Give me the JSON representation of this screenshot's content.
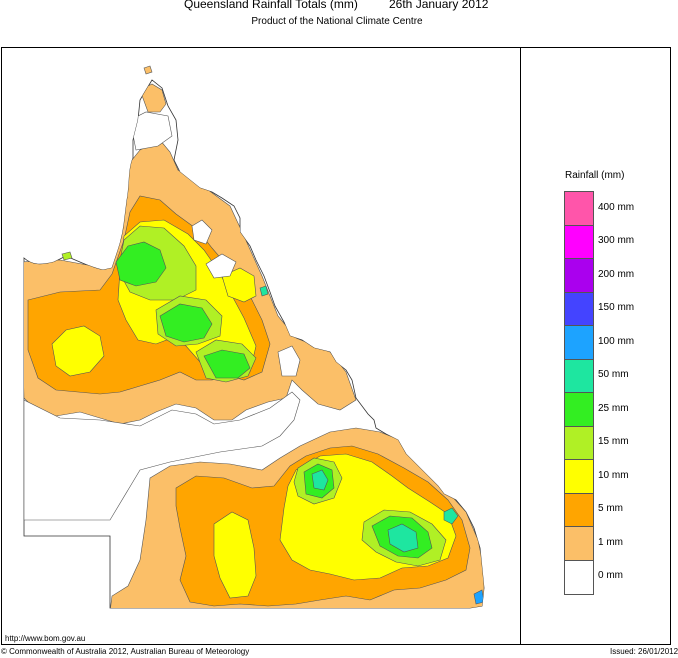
{
  "header": {
    "title": "Queensland Rainfall Totals (mm)",
    "date": "26th January 2012",
    "subtitle": "Product of the National Climate Centre"
  },
  "legend": {
    "title": "Rainfall (mm)",
    "swatches": [
      {
        "color": "#ff55aa"
      },
      {
        "color": "#ff00ff"
      },
      {
        "color": "#aa00ee"
      },
      {
        "color": "#4444ff"
      },
      {
        "color": "#1da3ff"
      },
      {
        "color": "#1ee6a0"
      },
      {
        "color": "#33ee22"
      },
      {
        "color": "#b0f025"
      },
      {
        "color": "#ffff00"
      },
      {
        "color": "#ffa500"
      },
      {
        "color": "#fbbf68"
      },
      {
        "color": "#ffffff"
      }
    ],
    "labels": [
      "400 mm",
      "300 mm",
      "200 mm",
      "150 mm",
      "100 mm",
      "50 mm",
      "25 mm",
      "15 mm",
      "10 mm",
      "5 mm",
      "1 mm",
      "0 mm"
    ]
  },
  "footer": {
    "url": "http://www.bom.gov.au",
    "copyright": "© Commonwealth of Australia 2012, Australian Bureau of Meteorology",
    "issued": "Issued: 26/01/2012"
  }
}
